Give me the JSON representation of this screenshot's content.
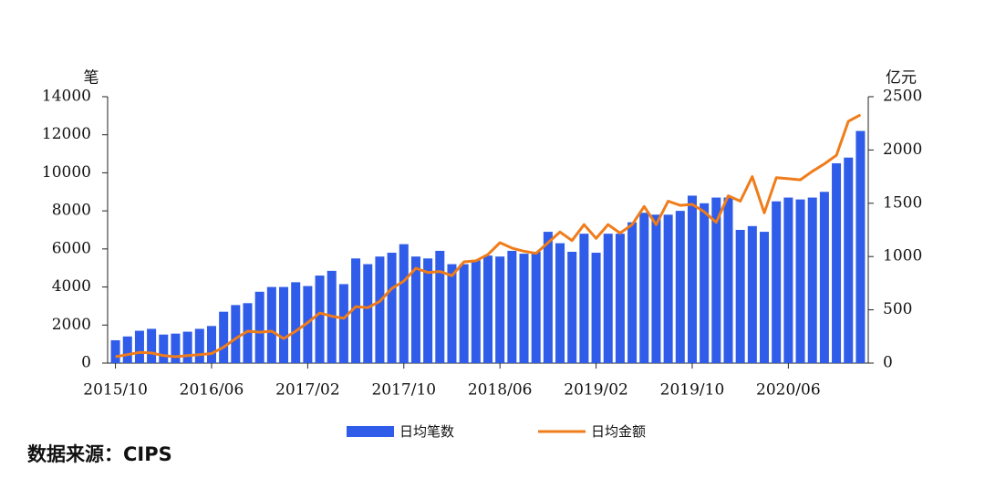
{
  "chart_data": {
    "type": "bar-line",
    "y_label": "笔",
    "y2_label": "亿元",
    "source": "数据来源：CIPS",
    "categories": [
      "2015/10",
      null,
      null,
      null,
      null,
      null,
      null,
      null,
      "2016/06",
      null,
      null,
      null,
      null,
      null,
      null,
      null,
      "2017/02",
      null,
      null,
      null,
      null,
      null,
      null,
      null,
      "2017/10",
      null,
      null,
      null,
      null,
      null,
      null,
      null,
      "2018/06",
      null,
      null,
      null,
      null,
      null,
      null,
      null,
      "2019/02",
      null,
      null,
      null,
      null,
      null,
      null,
      null,
      "2019/10",
      null,
      null,
      null,
      null,
      null,
      null,
      null,
      "2020/06",
      null,
      null,
      null,
      null,
      null,
      null
    ],
    "series": [
      {
        "name": "日均笔数",
        "type": "bar",
        "color": "#2f5ce8",
        "values": [
          1200,
          1400,
          1700,
          1800,
          1500,
          1550,
          1650,
          1800,
          1950,
          2700,
          3050,
          3150,
          3750,
          4000,
          4000,
          4250,
          4050,
          4600,
          4850,
          4150,
          5500,
          5200,
          5600,
          5800,
          6250,
          5600,
          5500,
          5900,
          5200,
          5200,
          5400,
          5650,
          5600,
          5900,
          5750,
          5850,
          6900,
          6300,
          5850,
          6800,
          5800,
          6800,
          6800,
          7400,
          7900,
          7800,
          7800,
          8000,
          8800,
          8400,
          8700,
          8700,
          7000,
          7200,
          6900,
          8500,
          8700,
          8600,
          8700,
          9000,
          10500,
          10800,
          12200
        ]
      },
      {
        "name": "日均金额",
        "type": "line",
        "axis": "y2",
        "color": "#f07c1a",
        "values": [
          60,
          80,
          100,
          95,
          70,
          60,
          70,
          80,
          90,
          150,
          230,
          300,
          290,
          300,
          230,
          300,
          380,
          470,
          440,
          420,
          530,
          520,
          580,
          700,
          770,
          890,
          850,
          860,
          820,
          950,
          960,
          1020,
          1130,
          1080,
          1050,
          1030,
          1130,
          1230,
          1150,
          1300,
          1170,
          1300,
          1220,
          1300,
          1470,
          1300,
          1520,
          1480,
          1490,
          1420,
          1320,
          1570,
          1520,
          1750,
          1410,
          1740,
          1730,
          1720,
          1800,
          1870,
          1950,
          2270,
          2330
        ]
      }
    ],
    "ylim": [
      0,
      14000
    ],
    "yticks": [
      0,
      2000,
      4000,
      6000,
      8000,
      10000,
      12000,
      14000
    ],
    "y2lim": [
      0,
      2500
    ],
    "y2ticks": [
      0,
      500,
      1000,
      1500,
      2000,
      2500
    ]
  }
}
